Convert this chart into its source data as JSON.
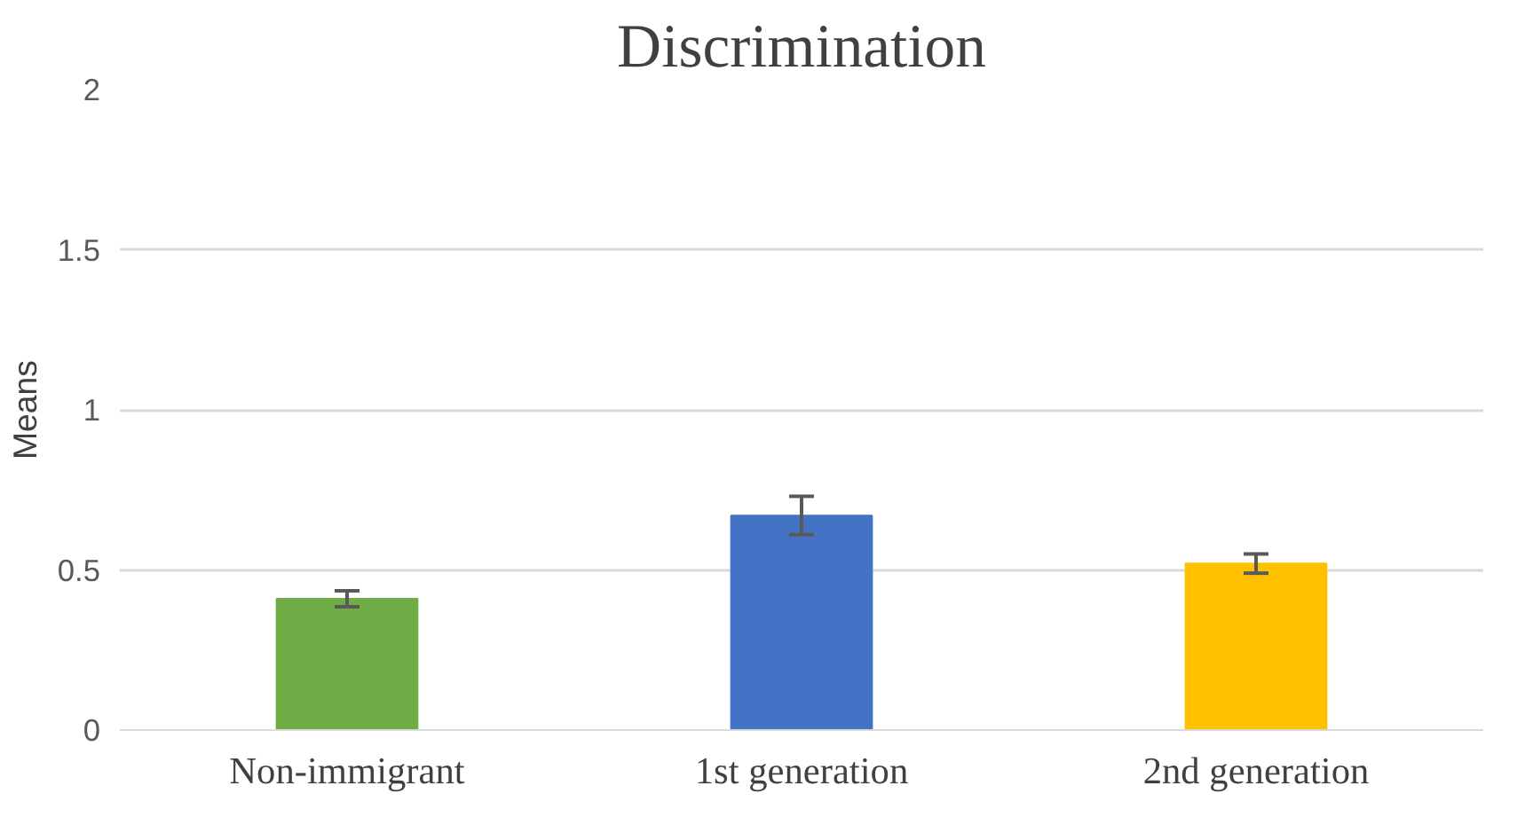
{
  "chart_data": {
    "type": "bar",
    "title": "Discrimination",
    "ylabel": "Means",
    "categories": [
      "Non-immigrant",
      "1st generation",
      "2nd generation"
    ],
    "values": [
      0.41,
      0.67,
      0.52
    ],
    "colors": [
      "#70ad47",
      "#4472c4",
      "#ffc000"
    ],
    "errors": [
      0.025,
      0.06,
      0.03
    ],
    "ylim": [
      0,
      2
    ],
    "yticks": [
      0,
      0.5,
      1,
      1.5,
      2
    ],
    "grid": "y"
  }
}
